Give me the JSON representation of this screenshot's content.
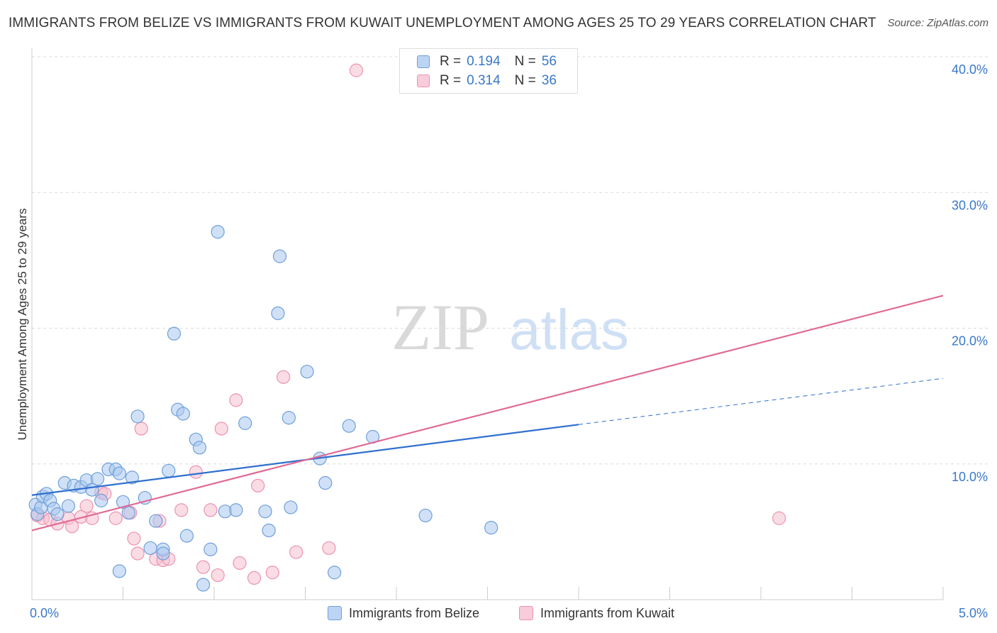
{
  "title": "IMMIGRANTS FROM BELIZE VS IMMIGRANTS FROM KUWAIT UNEMPLOYMENT AMONG AGES 25 TO 29 YEARS CORRELATION CHART",
  "source": "Source: ZipAtlas.com",
  "watermark": {
    "zip": "ZIP",
    "atlas": "atlas"
  },
  "colors": {
    "belize_fill": "#a9c8f0",
    "belize_stroke": "#6f9fd8",
    "belize_line": "#2f6fcf",
    "kuwait_fill": "#f6bfd0",
    "kuwait_stroke": "#ec93b0",
    "kuwait_line": "#e06a96",
    "axis_label": "#3a78c9",
    "grid": "#dcdcdc"
  },
  "legend": {
    "rows": [
      {
        "r_label": "R =",
        "r_value": "0.194",
        "n_label": "N =",
        "n_value": "56"
      },
      {
        "r_label": "R =",
        "r_value": "0.314",
        "n_label": "N =",
        "n_value": "36"
      }
    ]
  },
  "chart_data": {
    "type": "scatter",
    "title": "IMMIGRANTS FROM BELIZE VS IMMIGRANTS FROM KUWAIT UNEMPLOYMENT AMONG AGES 25 TO 29 YEARS CORRELATION CHART",
    "xlabel": "",
    "ylabel": "Unemployment Among Ages 25 to 29 years",
    "xlim": [
      0,
      5
    ],
    "ylim": [
      0,
      40
    ],
    "x_tick_labels": [
      "0.0%",
      "5.0%"
    ],
    "y_ticks": [
      10,
      20,
      30,
      40
    ],
    "y_tick_labels": [
      "10.0%",
      "20.0%",
      "30.0%",
      "40.0%"
    ],
    "grid": true,
    "legend_position": "top-center and bottom",
    "series": [
      {
        "name": "Immigrants from Belize",
        "R": 0.194,
        "N": 56,
        "trend": {
          "x0": 0.0,
          "y0": 7.7,
          "x1": 3.0,
          "y1": 12.9,
          "dashed_to_x": 5.0,
          "dashed_to_y": 16.3
        },
        "points": [
          [
            0.02,
            7.0
          ],
          [
            0.03,
            6.3
          ],
          [
            0.05,
            6.8
          ],
          [
            0.06,
            7.6
          ],
          [
            0.08,
            7.8
          ],
          [
            0.1,
            7.3
          ],
          [
            0.12,
            6.7
          ],
          [
            0.14,
            6.3
          ],
          [
            0.18,
            8.6
          ],
          [
            0.2,
            6.9
          ],
          [
            0.23,
            8.4
          ],
          [
            0.27,
            8.3
          ],
          [
            0.3,
            8.8
          ],
          [
            0.33,
            8.1
          ],
          [
            0.36,
            8.9
          ],
          [
            0.38,
            7.3
          ],
          [
            0.42,
            9.6
          ],
          [
            0.46,
            9.6
          ],
          [
            0.48,
            9.3
          ],
          [
            0.48,
            2.1
          ],
          [
            0.5,
            7.2
          ],
          [
            0.53,
            6.4
          ],
          [
            0.55,
            9.0
          ],
          [
            0.58,
            13.5
          ],
          [
            0.62,
            7.5
          ],
          [
            0.65,
            3.8
          ],
          [
            0.68,
            5.8
          ],
          [
            0.72,
            3.7
          ],
          [
            0.72,
            3.4
          ],
          [
            0.75,
            9.5
          ],
          [
            0.78,
            19.6
          ],
          [
            0.8,
            14.0
          ],
          [
            0.83,
            13.7
          ],
          [
            0.85,
            4.7
          ],
          [
            0.9,
            11.8
          ],
          [
            0.92,
            11.2
          ],
          [
            0.94,
            1.1
          ],
          [
            0.98,
            3.7
          ],
          [
            1.02,
            27.1
          ],
          [
            1.06,
            6.5
          ],
          [
            1.12,
            6.6
          ],
          [
            1.17,
            13.0
          ],
          [
            1.28,
            6.5
          ],
          [
            1.3,
            5.1
          ],
          [
            1.35,
            21.1
          ],
          [
            1.36,
            25.3
          ],
          [
            1.41,
            13.4
          ],
          [
            1.42,
            6.8
          ],
          [
            1.51,
            16.8
          ],
          [
            1.58,
            10.4
          ],
          [
            1.61,
            8.6
          ],
          [
            1.66,
            2.0
          ],
          [
            1.74,
            12.8
          ],
          [
            1.87,
            12.0
          ],
          [
            2.16,
            6.2
          ],
          [
            2.52,
            5.3
          ]
        ]
      },
      {
        "name": "Immigrants from Kuwait",
        "R": 0.314,
        "N": 36,
        "trend": {
          "x0": 0.0,
          "y0": 5.1,
          "x1": 5.0,
          "y1": 22.4
        },
        "points": [
          [
            0.03,
            6.2
          ],
          [
            0.06,
            6.0
          ],
          [
            0.1,
            5.9
          ],
          [
            0.14,
            5.6
          ],
          [
            0.2,
            6.0
          ],
          [
            0.22,
            5.4
          ],
          [
            0.27,
            6.1
          ],
          [
            0.3,
            6.9
          ],
          [
            0.33,
            6.0
          ],
          [
            0.38,
            7.9
          ],
          [
            0.4,
            7.8
          ],
          [
            0.46,
            6.0
          ],
          [
            0.54,
            6.4
          ],
          [
            0.56,
            4.5
          ],
          [
            0.58,
            3.4
          ],
          [
            0.6,
            12.6
          ],
          [
            0.68,
            3.0
          ],
          [
            0.7,
            5.8
          ],
          [
            0.72,
            2.9
          ],
          [
            0.75,
            3.0
          ],
          [
            0.82,
            6.6
          ],
          [
            0.9,
            9.4
          ],
          [
            0.94,
            2.4
          ],
          [
            0.98,
            6.6
          ],
          [
            1.02,
            1.8
          ],
          [
            1.04,
            12.6
          ],
          [
            1.12,
            14.7
          ],
          [
            1.14,
            2.7
          ],
          [
            1.22,
            1.6
          ],
          [
            1.24,
            8.4
          ],
          [
            1.32,
            2.0
          ],
          [
            1.38,
            16.4
          ],
          [
            1.45,
            3.5
          ],
          [
            1.63,
            3.8
          ],
          [
            1.78,
            39.0
          ],
          [
            4.1,
            6.0
          ]
        ]
      }
    ]
  }
}
